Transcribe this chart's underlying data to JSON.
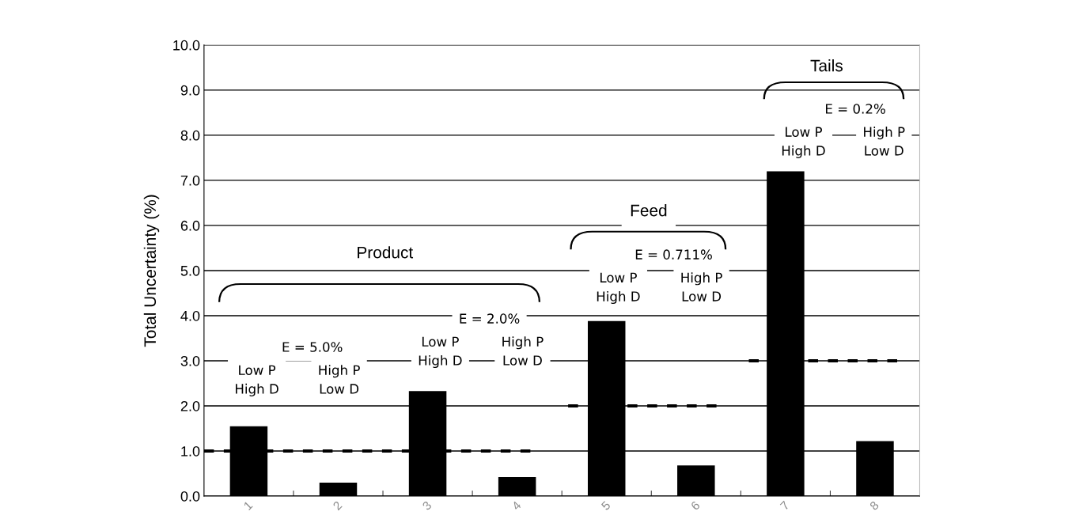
{
  "chart_data": {
    "type": "bar",
    "ylabel": "Total Uncertainty (%)",
    "categories": [
      "1",
      "2",
      "3",
      "4",
      "5",
      "6",
      "7",
      "8"
    ],
    "series": [
      {
        "color": "#000000",
        "values": [
          1.55,
          0.3,
          2.33,
          0.42,
          3.88,
          0.68,
          7.2,
          1.22
        ]
      }
    ],
    "ref_lines": [
      {
        "axis": "y",
        "value": 1.0,
        "color": "#000000",
        "line_style": "dashed"
      },
      {
        "axis": "y",
        "value": 2.0,
        "color": "#000000",
        "line_style": "dashed"
      },
      {
        "axis": "y",
        "value": 3.0,
        "color": "#000000",
        "line_style": "dashed"
      }
    ],
    "ylim": [
      0,
      10
    ],
    "yticks": [
      {
        "value": 0,
        "label": "0.0"
      },
      {
        "value": 1,
        "label": "1.0"
      },
      {
        "value": 2,
        "label": "2.0"
      },
      {
        "value": 3,
        "label": "3.0"
      },
      {
        "value": 4,
        "label": "4.0"
      },
      {
        "value": 5,
        "label": "5.0"
      },
      {
        "value": 6,
        "label": "6.0"
      },
      {
        "value": 7,
        "label": "7.0"
      },
      {
        "value": 8,
        "label": "8.0"
      },
      {
        "value": 9,
        "label": "9.0"
      },
      {
        "value": 10,
        "label": "10.0"
      }
    ],
    "grid": "y",
    "legend": false,
    "annotations": [
      "Product",
      "E = 5.0%",
      "Low P\nHigh D",
      "High P\nLow D",
      "E = 2.0%",
      "Low P\nHigh D",
      "High P\nLow D",
      "Feed",
      "E = 0.711%",
      "Low P\nHigh D",
      "High P\nLow D",
      "Tails",
      "E = 0.2%",
      "Low P\nHigh D",
      "High P\nLow D"
    ]
  }
}
